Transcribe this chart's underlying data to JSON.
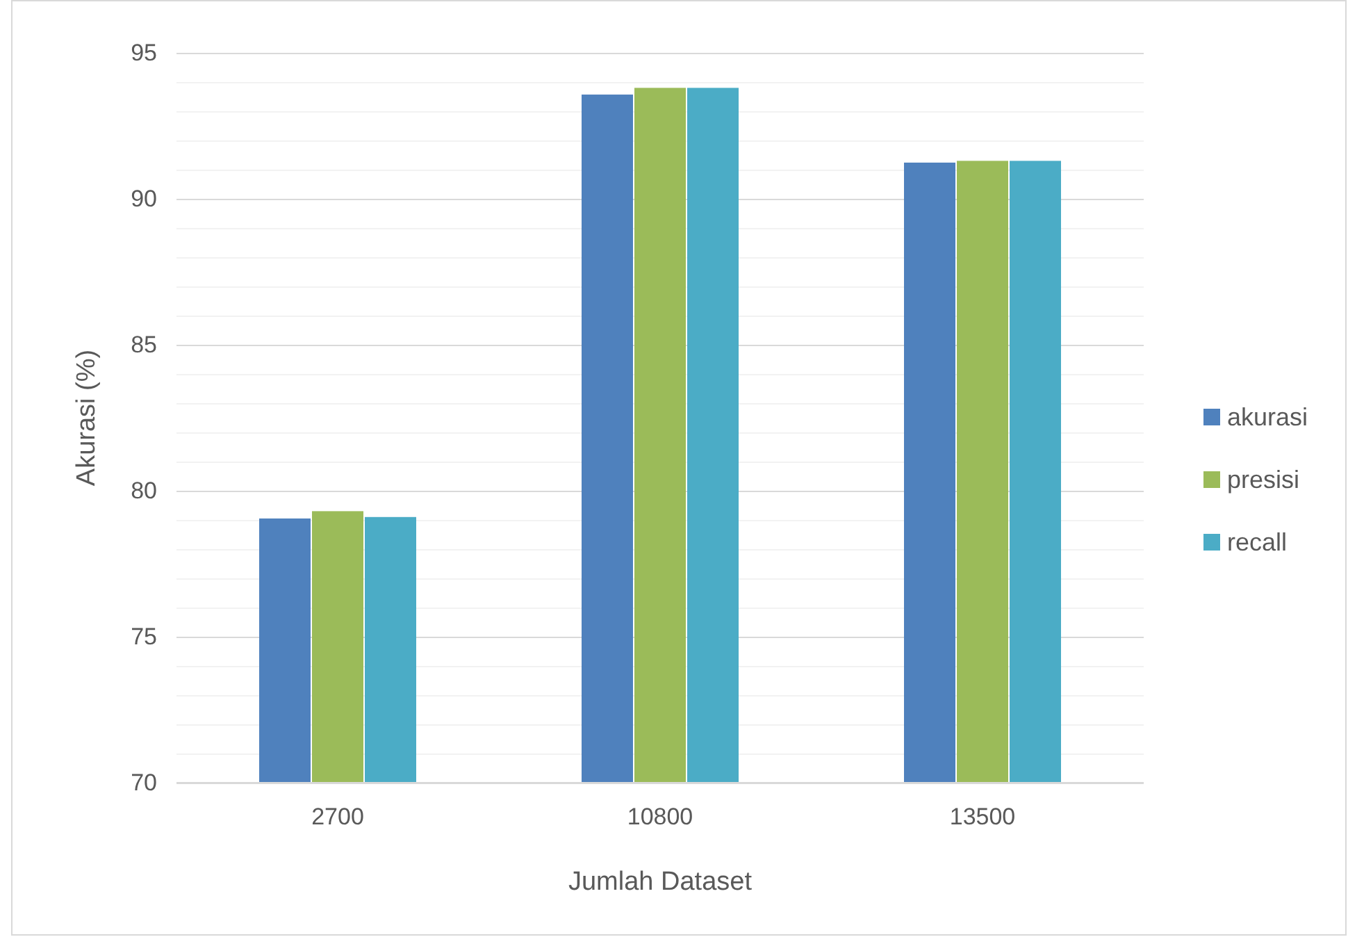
{
  "chart_data": {
    "type": "bar",
    "xlabel": "Jumlah Dataset",
    "ylabel": "Akurasi (%)",
    "categories": [
      "2700",
      "10800",
      "13500"
    ],
    "series": [
      {
        "name": "akurasi",
        "color": "#4f81bd",
        "values": [
          79.05,
          93.57,
          91.24
        ]
      },
      {
        "name": "presisi",
        "color": "#9bbb59",
        "values": [
          79.3,
          93.8,
          91.3
        ]
      },
      {
        "name": "recall",
        "color": "#4bacc6",
        "values": [
          79.1,
          93.8,
          91.3
        ]
      }
    ],
    "ylim": [
      70,
      95
    ],
    "yticks": [
      70,
      {
        "value": 71,
        "label": null
      },
      {
        "value": 72,
        "label": null
      },
      {
        "value": 73,
        "label": null
      },
      {
        "value": 74,
        "label": null
      },
      75,
      {
        "value": 76,
        "label": null
      },
      {
        "value": 77,
        "label": null
      },
      {
        "value": 78,
        "label": null
      },
      {
        "value": 79,
        "label": null
      },
      80,
      {
        "value": 81,
        "label": null
      },
      {
        "value": 82,
        "label": null
      },
      {
        "value": 83,
        "label": null
      },
      {
        "value": 84,
        "label": null
      },
      85,
      {
        "value": 86,
        "label": null
      },
      {
        "value": 87,
        "label": null
      },
      {
        "value": 88,
        "label": null
      },
      {
        "value": 89,
        "label": null
      },
      90,
      {
        "value": 91,
        "label": null
      },
      {
        "value": 92,
        "label": null
      },
      {
        "value": 93,
        "label": null
      },
      {
        "value": 94,
        "label": null
      },
      95
    ],
    "grid": "y",
    "legend": "right"
  }
}
